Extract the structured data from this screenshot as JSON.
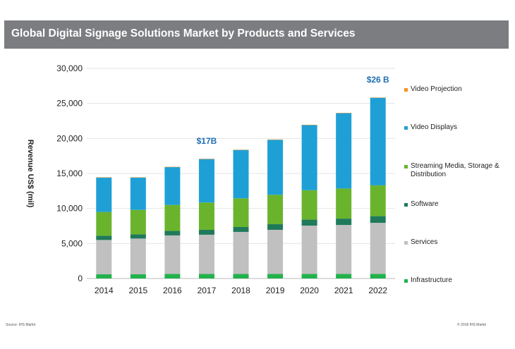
{
  "header": {
    "title": "Global Digital Signage Solutions Market by Products and Services"
  },
  "footer": {
    "source": "Source: IHS Markit",
    "copyright": "© 2018 IHS Markit"
  },
  "chart_data": {
    "type": "bar",
    "stacked": true,
    "categories": [
      "2014",
      "2015",
      "2016",
      "2017",
      "2018",
      "2019",
      "2020",
      "2021",
      "2022"
    ],
    "ylabel": "Revenue US$ (mil)",
    "ylim": [
      0,
      30000
    ],
    "yticks": [
      "30,000",
      "25,000",
      "20,000",
      "15,000",
      "10,000",
      "5,000",
      "0"
    ],
    "ytick_values": [
      30000,
      25000,
      20000,
      15000,
      10000,
      5000,
      0
    ],
    "grid": true,
    "legend_position": "right",
    "series": [
      {
        "name": "Infrastructure",
        "color": "#22b14c",
        "values": [
          600,
          600,
          650,
          650,
          650,
          650,
          650,
          650,
          650
        ]
      },
      {
        "name": "Services",
        "color": "#c0c0c0",
        "values": [
          4900,
          5100,
          5500,
          5600,
          6000,
          6300,
          6900,
          7000,
          7300
        ]
      },
      {
        "name": "Software",
        "color": "#1f7a5a",
        "values": [
          600,
          600,
          650,
          700,
          700,
          800,
          850,
          900,
          950
        ]
      },
      {
        "name": "Streaming Media, Storage & Distribution",
        "color": "#6ab42d",
        "values": [
          3400,
          3500,
          3700,
          3900,
          4100,
          4200,
          4200,
          4300,
          4400
        ]
      },
      {
        "name": "Video Displays",
        "color": "#1ea0d7",
        "values": [
          4900,
          4600,
          5400,
          6200,
          6900,
          7850,
          9300,
          10750,
          12500
        ]
      },
      {
        "name": "Video Projection",
        "color": "#f7941d",
        "values": [
          50,
          50,
          50,
          50,
          50,
          50,
          50,
          50,
          50
        ]
      }
    ],
    "annotations": [
      {
        "category": "2017",
        "text": "$17B"
      },
      {
        "category": "2022",
        "text": "$26 B"
      }
    ],
    "legend_order": [
      "Video Projection",
      "Video Displays",
      "Streaming Media, Storage & Distribution",
      "Software",
      "Services",
      "Infrastructure"
    ]
  }
}
